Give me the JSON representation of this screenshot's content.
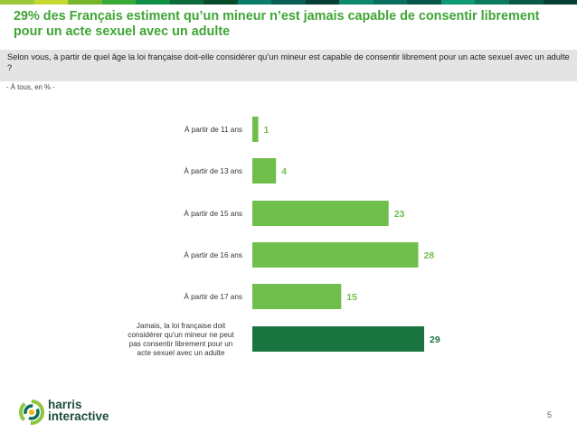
{
  "header": {
    "title": "29% des Français estiment qu’un mineur n’est jamais capable de consentir librement pour un acte sexuel avec un adulte",
    "question": "Selon vous, à partir de quel âge la loi française doit-elle considérer qu’un mineur est capable de consentir librement pour un acte sexuel avec un adulte ?",
    "base": "- À tous, en % -"
  },
  "colors": {
    "title": "#3fa535",
    "bar_light": "#70bf4c",
    "bar_dark": "#1a7440",
    "stripe": [
      "#9bc93a",
      "#c6d832",
      "#76b72a",
      "#38a836",
      "#0f8f45",
      "#0c6b3b",
      "#064c2b",
      "#0b7c6a",
      "#0a5d55",
      "#063d35",
      "#0d8a6e",
      "#0b6e5e",
      "#07564c",
      "#0f9a74",
      "#0c7b60",
      "#085a48",
      "#044032"
    ]
  },
  "chart_data": {
    "type": "bar",
    "orientation": "horizontal",
    "categories": [
      "À partir de 11 ans",
      "À partir de 13 ans",
      "À partir de 15 ans",
      "À partir de 16 ans",
      "À partir de 17 ans",
      "Jamais, la loi française doit considérer qu’un mineur ne peut pas consentir librement pour un acte sexuel avec un adulte"
    ],
    "category_lines": [
      [
        "À partir de 11 ans"
      ],
      [
        "À partir de 13 ans"
      ],
      [
        "À partir de 15 ans"
      ],
      [
        "À partir de 16 ans"
      ],
      [
        "À partir de 17 ans"
      ],
      [
        "Jamais, la loi française doit",
        "considérer qu’un mineur ne peut",
        "pas consentir librement pour un",
        "acte sexuel avec un adulte"
      ]
    ],
    "values": [
      1,
      4,
      23,
      28,
      15,
      29
    ],
    "highlight_index": 5,
    "xlim": [
      0,
      29
    ],
    "unit": "%"
  },
  "footer": {
    "logo_line1": "harris",
    "logo_line2": "interactive",
    "page_number": "5"
  }
}
